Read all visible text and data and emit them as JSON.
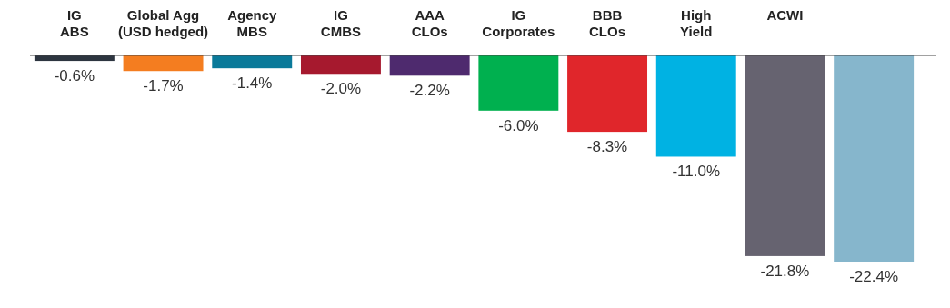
{
  "chart_data": {
    "type": "bar",
    "categories": [
      "IG\nABS",
      "Global Agg\n(USD hedged)",
      "Agency\nMBS",
      "IG\nCMBS",
      "AAA\nCLOs",
      "IG\nCorporates",
      "BBB\nCLOs",
      "High\nYield",
      "ACWI",
      null
    ],
    "values": [
      -0.6,
      -1.7,
      -1.4,
      -2.0,
      -2.2,
      -6.0,
      -8.3,
      -11.0,
      -21.8,
      -22.4
    ],
    "colors": [
      "#2d3540",
      "#f47d20",
      "#0a7a9a",
      "#a6192e",
      "#4e2a6e",
      "#00b04f",
      "#e0262b",
      "#00b2e3",
      "#666370",
      "#86b6cc"
    ],
    "value_labels": [
      "-0.6%",
      "-1.7%",
      "-1.4%",
      "-2.0%",
      "-2.2%",
      "-6.0%",
      "-8.3%",
      "-11.0%",
      "-21.8%",
      "-22.4%"
    ]
  }
}
